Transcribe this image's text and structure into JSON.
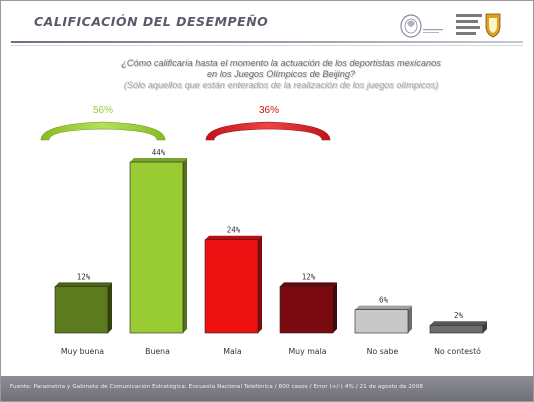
{
  "header": {
    "title": "CALIFICACIÓN DEL DESEMPEÑO",
    "logo_text": "SONDEO DE OPINIÓN COMUNICACIÓN",
    "logo_label": "GABINETE DE COMUNICACIÓN ESTRATÉGICA"
  },
  "question": {
    "line1": "¿Cómo calificaría hasta el momento la actuación de los deportistas mexicanos",
    "line2": "en los Juegos Olímpicos de Beijing?",
    "line3": "(Sólo aquellos que están enterados de la realización de los juegos olímpicos)"
  },
  "groups": {
    "positive": {
      "label": "56%",
      "color": "#99cc33"
    },
    "negative": {
      "label": "36%",
      "color": "#dd2222"
    }
  },
  "chart_data": {
    "type": "bar",
    "categories": [
      "Muy buena",
      "Buena",
      "Mala",
      "Muy mala",
      "No sabe",
      "No contestó"
    ],
    "values": [
      12,
      44,
      24,
      12,
      6,
      2
    ],
    "value_labels": [
      "12%",
      "44%",
      "24%",
      "12%",
      "6%",
      "2%"
    ],
    "colors": [
      "#5c7a1e",
      "#99cc33",
      "#ee1111",
      "#7a0a10",
      "#c8c8c8",
      "#6e6e6e"
    ],
    "ylim": [
      0,
      44
    ],
    "grid": false,
    "title": "",
    "xlabel": "",
    "ylabel": ""
  },
  "footer": {
    "text": "Fuente: Parametría y Gabinete de Comunicación Estratégica: Encuesta Nacional Telefónica / 600 casos / Error (+/-) 4% / 21 de agosto de 2008"
  }
}
